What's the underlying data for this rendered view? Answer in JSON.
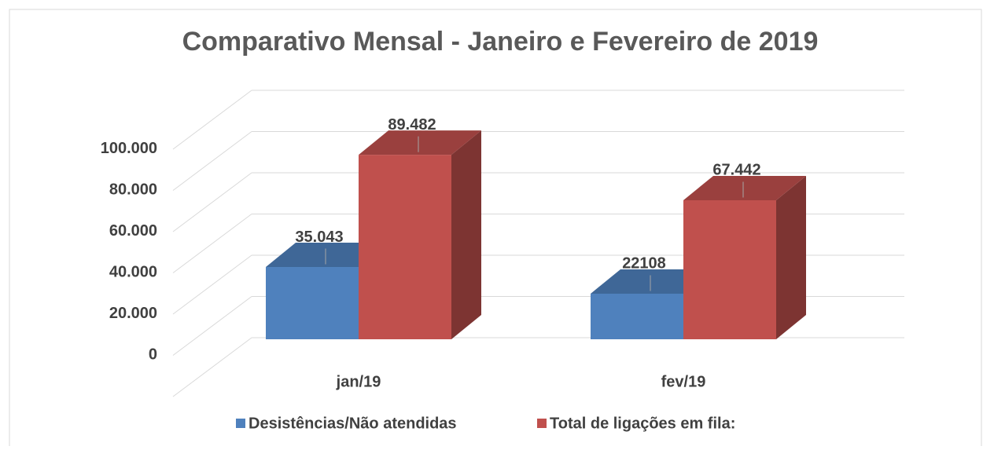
{
  "chart_data": {
    "type": "bar3d",
    "title": "Comparativo Mensal - Janeiro e Fevereiro de 2019",
    "categories": [
      "jan/19",
      "fev/19"
    ],
    "series": [
      {
        "name": "Desistências/Não atendidas",
        "color": "#4f81bd",
        "values": [
          35043,
          22108
        ],
        "value_labels": [
          "35.043",
          "22108"
        ]
      },
      {
        "name": "Total de ligações em fila:",
        "color": "#c0504d",
        "values": [
          89482,
          67442
        ],
        "value_labels": [
          "89.482",
          "67.442"
        ]
      }
    ],
    "ylim": [
      0,
      120000
    ],
    "yticks": [
      0,
      {
        "value": 20000,
        "label": "20.000"
      },
      {
        "value": 40000,
        "label": "40.000"
      },
      {
        "value": 60000,
        "label": "60.000"
      },
      {
        "value": 80000,
        "label": "80.000"
      },
      {
        "value": 100000,
        "label": "100.000"
      }
    ],
    "grid": true,
    "legend": "bottom"
  }
}
